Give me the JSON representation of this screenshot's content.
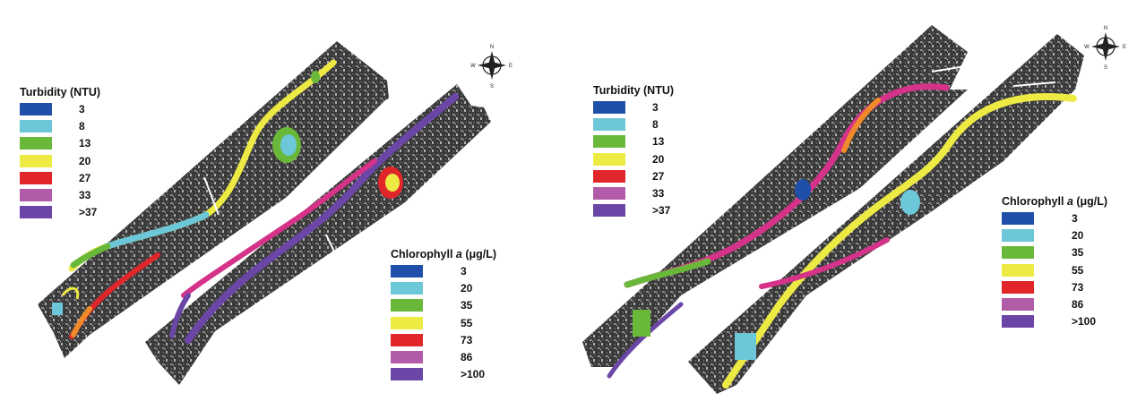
{
  "colors": {
    "c1": "#1f4fa8",
    "c2": "#6cc8d8",
    "c3": "#6ab83a",
    "c4": "#eeea44",
    "c5": "#e0262a",
    "c6": "#b25ba8",
    "c7": "#6b46a6"
  },
  "panels": [
    {
      "turbidity": {
        "title_pre": "Turbidity (NTU)",
        "title_italic": "",
        "title_post": "",
        "classes": [
          {
            "label": "3",
            "color": "#1f4fa8"
          },
          {
            "label": "8",
            "color": "#6cc8d8"
          },
          {
            "label": "13",
            "color": "#6ab83a"
          },
          {
            "label": "20",
            "color": "#eeea44"
          },
          {
            "label": "27",
            "color": "#e0262a"
          },
          {
            "label": "33",
            "color": "#b25ba8"
          },
          {
            "label": ">37",
            "color": "#6b46a6"
          }
        ]
      },
      "chlorophyll": {
        "title_pre": "Chlorophyll ",
        "title_italic": "a",
        "title_post": " (μg/L)",
        "classes": [
          {
            "label": "3",
            "color": "#1f4fa8"
          },
          {
            "label": "20",
            "color": "#6cc8d8"
          },
          {
            "label": "35",
            "color": "#6ab83a"
          },
          {
            "label": "55",
            "color": "#eeea44"
          },
          {
            "label": "73",
            "color": "#e0262a"
          },
          {
            "label": "86",
            "color": "#b25ba8"
          },
          {
            "label": ">100",
            "color": "#6b46a6"
          }
        ]
      },
      "compass": {
        "n": "N",
        "s": "S",
        "e": "E",
        "w": "W"
      }
    },
    {
      "turbidity": {
        "title_pre": "Turbidity (NTU)",
        "title_italic": "",
        "title_post": "",
        "classes": [
          {
            "label": "3",
            "color": "#1f4fa8"
          },
          {
            "label": "8",
            "color": "#6cc8d8"
          },
          {
            "label": "13",
            "color": "#6ab83a"
          },
          {
            "label": "20",
            "color": "#eeea44"
          },
          {
            "label": "27",
            "color": "#e0262a"
          },
          {
            "label": "33",
            "color": "#b25ba8"
          },
          {
            "label": ">37",
            "color": "#6b46a6"
          }
        ]
      },
      "chlorophyll": {
        "title_pre": "Chlorophyll ",
        "title_italic": "a",
        "title_post": " (μg/L)",
        "classes": [
          {
            "label": "3",
            "color": "#1f4fa8"
          },
          {
            "label": "20",
            "color": "#6cc8d8"
          },
          {
            "label": "35",
            "color": "#6ab83a"
          },
          {
            "label": "55",
            "color": "#eeea44"
          },
          {
            "label": "73",
            "color": "#e0262a"
          },
          {
            "label": "86",
            "color": "#b25ba8"
          },
          {
            "label": ">100",
            "color": "#6b46a6"
          }
        ]
      },
      "compass": {
        "n": "N",
        "s": "S",
        "e": "E",
        "w": "W"
      }
    }
  ]
}
